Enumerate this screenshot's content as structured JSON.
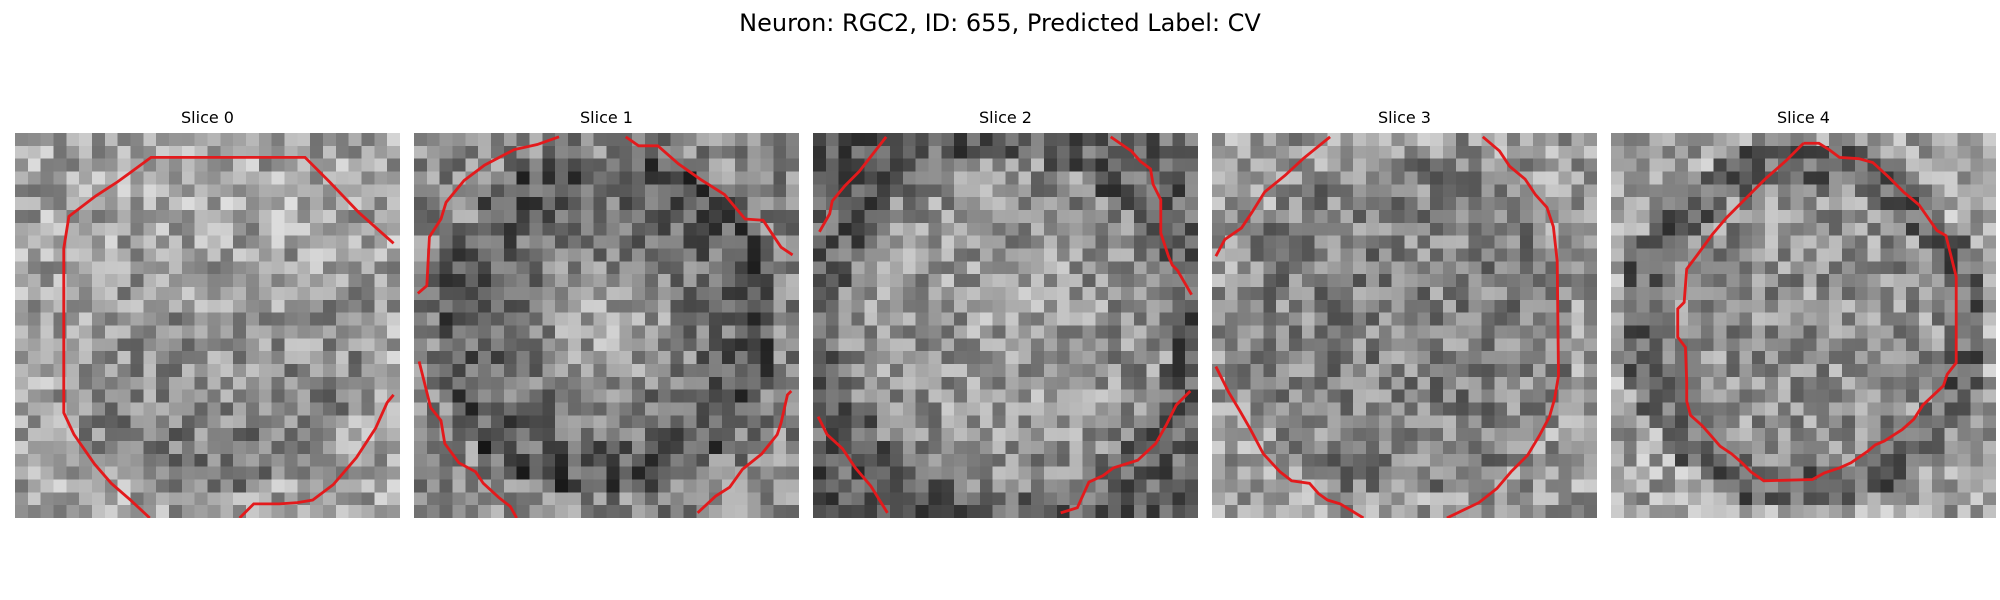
{
  "figure": {
    "title": "Neuron: RGC2, ID: 655, Predicted Label: CV"
  },
  "panels": [
    {
      "title": "Slice 0"
    },
    {
      "title": "Slice 1"
    },
    {
      "title": "Slice 2"
    },
    {
      "title": "Slice 3"
    },
    {
      "title": "Slice 4"
    }
  ],
  "colors": {
    "contour": "#e31a1c",
    "background": "#ffffff"
  }
}
